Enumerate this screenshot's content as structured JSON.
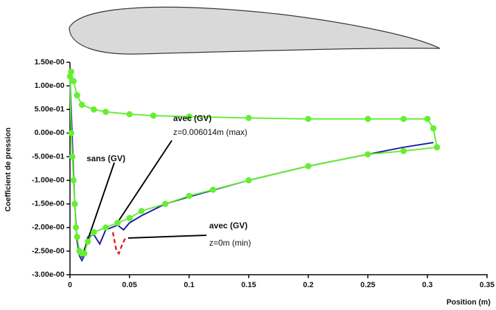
{
  "chart_data": {
    "type": "line",
    "x_label": "Position (m)",
    "y_label": "Coefficient de pression",
    "xlim": [
      0,
      0.35
    ],
    "xticks": [
      0,
      0.05,
      0.1,
      0.15,
      0.2,
      0.25,
      0.3,
      0.35
    ],
    "ylim": [
      -3.0,
      1.5
    ],
    "yticks": [
      {
        "value": 1.5,
        "label": "1.50e-00"
      },
      {
        "value": 1.0,
        "label": "1.00e-00"
      },
      {
        "value": 0.5,
        "label": "5.00e-01"
      },
      {
        "value": 0.0,
        "label": "0.00e-00"
      },
      {
        "value": -0.5,
        "label": "-5.00e-01"
      },
      {
        "value": -1.0,
        "label": "-1.00e-00"
      },
      {
        "value": -1.5,
        "label": "-1.50e-00"
      },
      {
        "value": -2.0,
        "label": "-2.00e-00"
      },
      {
        "value": -2.5,
        "label": "-2.50e-00"
      },
      {
        "value": -3.0,
        "label": "-3.00e-00"
      }
    ],
    "annotations": [
      "sans (GV)",
      "avec (GV)",
      "z=0.006014m (max)",
      "avec (GV)",
      "z=0m (min)"
    ],
    "series": [
      {
        "color": "#1c1ca8",
        "dashed": false,
        "markers": false,
        "x": [
          0,
          0.002,
          0.004,
          0.006,
          0.008,
          0.01,
          0.012,
          0.015,
          0.02,
          0.025,
          0.03,
          0.035,
          0.04,
          0.045,
          0.05,
          0.06,
          0.08,
          0.1,
          0.15,
          0.2,
          0.25,
          0.28,
          0.305
        ],
        "values": [
          1.2,
          -0.2,
          -1.5,
          -2.3,
          -2.6,
          -2.7,
          -2.6,
          -2.2,
          -2.15,
          -2.35,
          -2.05,
          -2.0,
          -1.95,
          -2.05,
          -1.9,
          -1.75,
          -1.5,
          -1.35,
          -1.0,
          -0.7,
          -0.45,
          -0.3,
          -0.2
        ]
      },
      {
        "color": "#dd2222",
        "dashed": true,
        "markers": false,
        "x": [
          0.036,
          0.039,
          0.041,
          0.044,
          0.047
        ],
        "values": [
          -2.1,
          -2.5,
          -2.55,
          -2.35,
          -2.2
        ]
      },
      {
        "color": "#66ee33",
        "dashed": false,
        "markers": true,
        "x": [
          0.308,
          0.28,
          0.25,
          0.2,
          0.15,
          0.12,
          0.1,
          0.08,
          0.06,
          0.05,
          0.04,
          0.03,
          0.02,
          0.015,
          0.012,
          0.01,
          0.008,
          0.006,
          0.005,
          0.004,
          0.003,
          0.002,
          0.001,
          0,
          0.001,
          0.003,
          0.006,
          0.01,
          0.02,
          0.03,
          0.05,
          0.07,
          0.1,
          0.15,
          0.2,
          0.25,
          0.28,
          0.3,
          0.305,
          0.308
        ],
        "values": [
          -0.3,
          -0.38,
          -0.45,
          -0.7,
          -1.0,
          -1.2,
          -1.33,
          -1.5,
          -1.65,
          -1.8,
          -1.9,
          -2.0,
          -2.1,
          -2.3,
          -2.55,
          -2.55,
          -2.5,
          -2.2,
          -2.0,
          -1.5,
          -1.0,
          -0.5,
          0.0,
          1.2,
          1.3,
          1.1,
          0.8,
          0.6,
          0.5,
          0.45,
          0.4,
          0.37,
          0.35,
          0.32,
          0.3,
          0.3,
          0.3,
          0.3,
          0.1,
          -0.3
        ]
      }
    ]
  }
}
